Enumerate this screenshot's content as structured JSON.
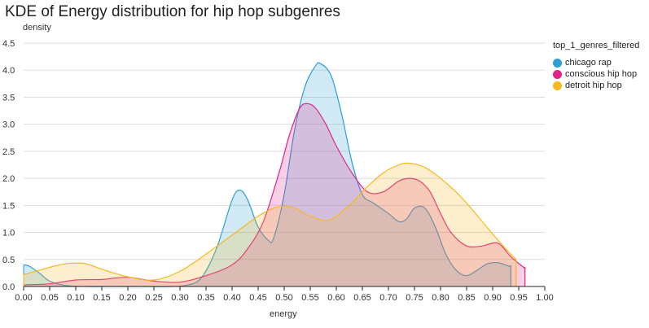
{
  "chart_data": {
    "type": "area",
    "title": "KDE of Energy distribution for hip hop subgenres",
    "xlabel": "energy",
    "ylabel": "density",
    "xlim": [
      0,
      1
    ],
    "ylim": [
      0,
      4.5
    ],
    "grid": true,
    "legend_position": "right",
    "legend_title": "top_1_genres_filtered",
    "x_ticks": [
      "0.00",
      "0.05",
      "0.10",
      "0.15",
      "0.20",
      "0.25",
      "0.30",
      "0.35",
      "0.40",
      "0.45",
      "0.50",
      "0.55",
      "0.60",
      "0.65",
      "0.70",
      "0.75",
      "0.80",
      "0.85",
      "0.90",
      "0.95",
      "1.00"
    ],
    "y_ticks": [
      "0.0",
      "0.5",
      "1.0",
      "1.5",
      "2.0",
      "2.5",
      "3.0",
      "3.5",
      "4.0",
      "4.5"
    ],
    "series": [
      {
        "name": "chicago rap",
        "color": "#2c9fd6",
        "x": [
          0.0,
          0.01,
          0.03,
          0.05,
          0.08,
          0.12,
          0.2,
          0.28,
          0.31,
          0.34,
          0.37,
          0.4,
          0.415,
          0.43,
          0.45,
          0.47,
          0.48,
          0.5,
          0.52,
          0.54,
          0.56,
          0.57,
          0.59,
          0.61,
          0.63,
          0.65,
          0.67,
          0.7,
          0.72,
          0.735,
          0.75,
          0.77,
          0.79,
          0.81,
          0.83,
          0.85,
          0.87,
          0.89,
          0.91,
          0.93,
          0.935
        ],
        "values": [
          0.4,
          0.38,
          0.25,
          0.1,
          0.02,
          0.0,
          0.0,
          0.0,
          0.02,
          0.15,
          0.7,
          1.6,
          1.78,
          1.6,
          1.1,
          0.85,
          0.9,
          1.7,
          2.9,
          3.7,
          4.08,
          4.12,
          3.9,
          3.2,
          2.3,
          1.7,
          1.55,
          1.35,
          1.2,
          1.25,
          1.45,
          1.45,
          1.1,
          0.6,
          0.3,
          0.2,
          0.3,
          0.42,
          0.44,
          0.38,
          0.38
        ]
      },
      {
        "name": "conscious hip hop",
        "color": "#e0248a",
        "x": [
          0.0,
          0.05,
          0.1,
          0.15,
          0.2,
          0.25,
          0.3,
          0.35,
          0.4,
          0.43,
          0.46,
          0.49,
          0.51,
          0.53,
          0.545,
          0.56,
          0.58,
          0.6,
          0.63,
          0.66,
          0.69,
          0.72,
          0.74,
          0.76,
          0.78,
          0.8,
          0.82,
          0.85,
          0.88,
          0.91,
          0.935,
          0.96,
          0.962
        ],
        "values": [
          0.03,
          0.05,
          0.12,
          0.13,
          0.17,
          0.1,
          0.08,
          0.2,
          0.4,
          0.7,
          1.2,
          2.1,
          2.8,
          3.3,
          3.38,
          3.3,
          3.0,
          2.6,
          2.1,
          1.75,
          1.75,
          1.95,
          2.0,
          1.95,
          1.75,
          1.35,
          1.0,
          0.75,
          0.75,
          0.8,
          0.55,
          0.35,
          0.35
        ]
      },
      {
        "name": "detroit hip hop",
        "color": "#f5b820",
        "x": [
          0.0,
          0.03,
          0.06,
          0.09,
          0.12,
          0.15,
          0.2,
          0.25,
          0.3,
          0.35,
          0.4,
          0.45,
          0.48,
          0.5,
          0.52,
          0.55,
          0.58,
          0.6,
          0.63,
          0.66,
          0.69,
          0.72,
          0.74,
          0.77,
          0.8,
          0.84,
          0.88,
          0.92,
          0.945
        ],
        "values": [
          0.22,
          0.3,
          0.38,
          0.43,
          0.42,
          0.32,
          0.18,
          0.12,
          0.28,
          0.6,
          0.95,
          1.3,
          1.45,
          1.48,
          1.45,
          1.3,
          1.22,
          1.3,
          1.55,
          1.85,
          2.1,
          2.25,
          2.28,
          2.2,
          2.0,
          1.65,
          1.2,
          0.75,
          0.5
        ]
      }
    ]
  },
  "legend": {
    "title": "top_1_genres_filtered",
    "items": [
      {
        "label": "chicago rap",
        "color": "#2c9fd6"
      },
      {
        "label": "conscious hip hop",
        "color": "#e0248a"
      },
      {
        "label": "detroit hip hop",
        "color": "#f5b820"
      }
    ]
  }
}
